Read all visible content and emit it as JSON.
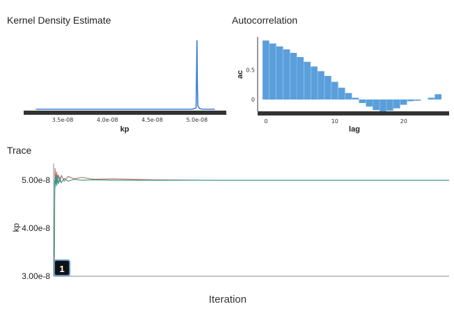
{
  "kde": {
    "title": "Kernel Density Estimate",
    "chart_data": {
      "type": "line",
      "xlabel": "kp",
      "ylabel": "",
      "xlim": [
        3.15e-08,
        5.25e-08
      ],
      "ylim": [
        0,
        1
      ],
      "x_ticks": [
        "3.5e-08",
        "4.0e-08",
        "4.5e-08",
        "5.0e-08"
      ],
      "x_tick_values": [
        3.5e-08,
        4e-08,
        4.5e-08,
        5e-08
      ],
      "series": [
        {
          "x": [
            3.2e-08,
            3.5e-08,
            4e-08,
            4.5e-08,
            4.95e-08,
            4.99e-08,
            5e-08,
            5.005e-08,
            5.01e-08,
            5.03e-08,
            5.06e-08,
            5.2e-08
          ],
          "y": [
            0.01,
            0.01,
            0.01,
            0.01,
            0.01,
            0.03,
            1.0,
            0.35,
            0.06,
            0.02,
            0.01,
            0.01
          ],
          "color": "#3a7fd0"
        }
      ]
    }
  },
  "acf": {
    "title": "Autocorrelation",
    "chart_data": {
      "type": "bar",
      "xlabel": "lag",
      "ylabel": "ac",
      "xlim": [
        -1,
        26.5
      ],
      "ylim": [
        -0.2,
        1.05
      ],
      "x_ticks": [
        "0",
        "10",
        "20"
      ],
      "x_tick_values": [
        0,
        10,
        20
      ],
      "y_ticks": [
        "0",
        "0.5"
      ],
      "y_tick_values": [
        0,
        0.5
      ],
      "categories": [
        0,
        1,
        2,
        3,
        4,
        5,
        6,
        7,
        8,
        9,
        10,
        11,
        12,
        13,
        14,
        15,
        16,
        17,
        18,
        19,
        20,
        21,
        22,
        23,
        24,
        25
      ],
      "values": [
        1.0,
        0.95,
        0.9,
        0.85,
        0.79,
        0.72,
        0.64,
        0.56,
        0.48,
        0.4,
        0.3,
        0.2,
        0.11,
        0.03,
        -0.06,
        -0.12,
        -0.18,
        -0.2,
        -0.19,
        -0.15,
        -0.09,
        -0.03,
        -0.02,
        0.0,
        0.03,
        0.09
      ],
      "color": "#5a9fdb"
    }
  },
  "trace": {
    "title": "Trace",
    "chart_data": {
      "type": "line",
      "xlabel": "Iteration",
      "ylabel": "kp",
      "ylim": [
        3e-08,
        5.35e-08
      ],
      "y_ticks": [
        "5.00e-8",
        "4.00e-8",
        "3.00e-8"
      ],
      "y_tick_values": [
        5e-08,
        4e-08,
        3e-08
      ],
      "series": [
        {
          "color": "#c0695a",
          "x": [
            0,
            1,
            2,
            4,
            6,
            8,
            10,
            14,
            18,
            25,
            35,
            50,
            70,
            100,
            150,
            250,
            400,
            600,
            1000
          ],
          "y": [
            3.1e-08,
            4.6e-08,
            5.25e-08,
            4.92e-08,
            5.18e-08,
            4.95e-08,
            5.12e-08,
            4.96e-08,
            5.1e-08,
            4.98e-08,
            5.08e-08,
            5.03e-08,
            5.06e-08,
            5.02e-08,
            5.03e-08,
            5.01e-08,
            5e-08,
            5e-08,
            5e-08
          ]
        },
        {
          "color": "#2a9a8f",
          "x": [
            0,
            1,
            2,
            4,
            6,
            8,
            10,
            14,
            18,
            25,
            35,
            50,
            70,
            100,
            150,
            250,
            400,
            600,
            1000
          ],
          "y": [
            3.4e-08,
            5e-08,
            4.85e-08,
            5.12e-08,
            4.88e-08,
            5.1e-08,
            4.92e-08,
            5.06e-08,
            4.95e-08,
            5.04e-08,
            4.98e-08,
            5.02e-08,
            5e-08,
            5.01e-08,
            5e-08,
            5e-08,
            5e-08,
            5e-08,
            5e-08
          ]
        }
      ],
      "xlim": [
        0,
        1000
      ]
    },
    "marker_label": "1"
  }
}
